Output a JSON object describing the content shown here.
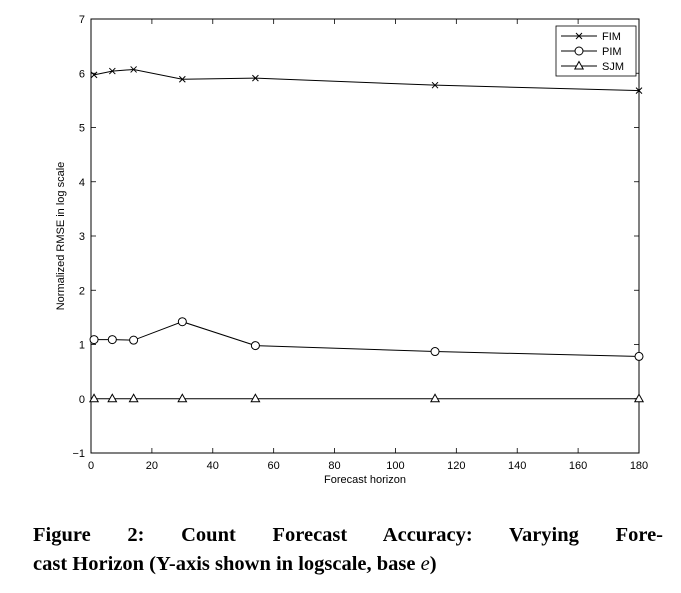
{
  "chart_data": {
    "type": "line",
    "xlabel": "Forecast horizon",
    "ylabel": "Normalized RMSE in log scale",
    "xlim": [
      0,
      180
    ],
    "ylim": [
      -1,
      7
    ],
    "xticks": [
      0,
      20,
      40,
      60,
      80,
      100,
      120,
      140,
      160,
      180
    ],
    "yticks": [
      -1,
      0,
      1,
      2,
      3,
      4,
      5,
      6,
      7
    ],
    "x": [
      1,
      7,
      14,
      30,
      54,
      113,
      180
    ],
    "grid": false,
    "legend_position": "top-right",
    "series": [
      {
        "name": "FIM",
        "marker": "x",
        "values": [
          5.97,
          6.04,
          6.07,
          5.89,
          5.91,
          5.78,
          5.68
        ]
      },
      {
        "name": "PIM",
        "marker": "o",
        "values": [
          1.09,
          1.09,
          1.08,
          1.42,
          0.98,
          0.87,
          0.78
        ]
      },
      {
        "name": "SJM",
        "marker": "triangle",
        "values": [
          0.0,
          0.0,
          0.0,
          0.0,
          0.0,
          0.0,
          0.0
        ]
      }
    ]
  },
  "caption": {
    "line1": "Figure 2: Count Forecast Accuracy: Varying Fore-",
    "line2_prefix": "cast Horizon (Y-axis shown in logscale, base ",
    "line2_var": "e",
    "line2_suffix": ")"
  }
}
